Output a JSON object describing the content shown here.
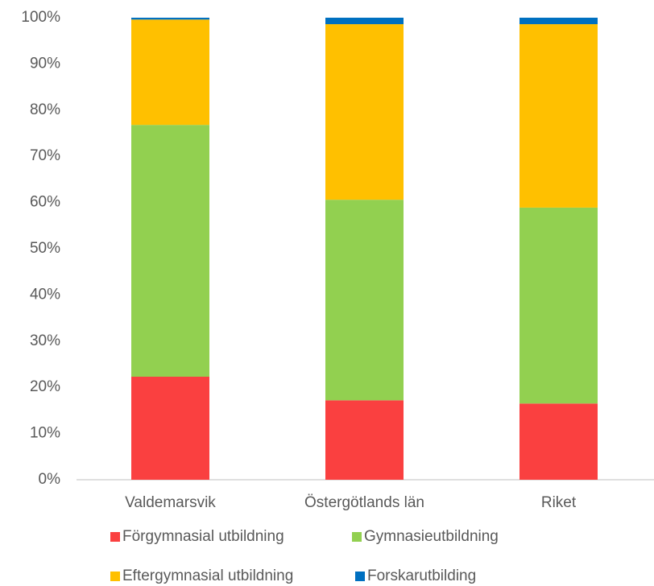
{
  "chart_data": {
    "type": "stacked_bar",
    "categories": [
      "Valdemarsvik",
      "Östergötlands län",
      "Riket"
    ],
    "series": [
      {
        "name": "Förgymnasial utbildning",
        "color": "#fa4040",
        "values": [
          22.3,
          17.2,
          16.5
        ]
      },
      {
        "name": "Gymnasieutbildning",
        "color": "#92d050",
        "values": [
          54.5,
          43.4,
          42.4
        ]
      },
      {
        "name": "Eftergymnasial utbildning",
        "color": "#ffc000",
        "values": [
          22.8,
          38.0,
          39.7
        ]
      },
      {
        "name": "Forskarutbilding",
        "color": "#0070c0",
        "values": [
          0.4,
          1.4,
          1.4
        ]
      }
    ],
    "ylim": [
      0,
      100
    ],
    "yticks": [
      {
        "value": 0,
        "label": "0%"
      },
      {
        "value": 10,
        "label": "10%"
      },
      {
        "value": 20,
        "label": "20%"
      },
      {
        "value": 30,
        "label": "30%"
      },
      {
        "value": 40,
        "label": "40%"
      },
      {
        "value": 50,
        "label": "50%"
      },
      {
        "value": 60,
        "label": "60%"
      },
      {
        "value": 70,
        "label": "70%"
      },
      {
        "value": 80,
        "label": "80%"
      },
      {
        "value": 90,
        "label": "90%"
      },
      {
        "value": 100,
        "label": "100%"
      }
    ],
    "grid": false
  }
}
